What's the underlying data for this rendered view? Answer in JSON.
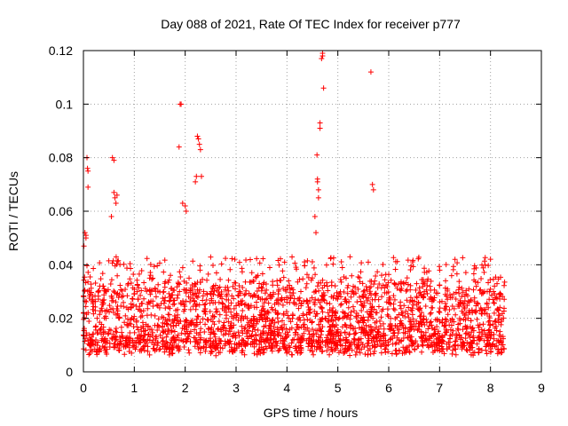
{
  "chart_data": {
    "type": "scatter",
    "title": "Day 088 of 2021, Rate Of TEC Index for receiver p777",
    "xlabel": "GPS time / hours",
    "ylabel": "ROTI / TECUs",
    "xlim": [
      0,
      9
    ],
    "ylim": [
      0,
      0.12
    ],
    "x_ticks": [
      "0",
      "1",
      "2",
      "3",
      "4",
      "5",
      "6",
      "7",
      "8",
      "9"
    ],
    "y_ticks": [
      "0",
      "0.02",
      "0.04",
      "0.06",
      "0.08",
      "0.1",
      "0.12"
    ],
    "grid": true,
    "marker": "+",
    "series": [
      {
        "name": "ROTI",
        "color": "#ff0000",
        "x": [
          0.01,
          0.03,
          0.05,
          0.05,
          0.07,
          0.08,
          0.09,
          0.09,
          0.55,
          0.57,
          0.6,
          0.6,
          0.62,
          0.64,
          0.66,
          1.88,
          1.9,
          1.92,
          1.95,
          2.0,
          2.02,
          2.2,
          2.22,
          2.24,
          2.26,
          2.28,
          2.3,
          2.32,
          4.55,
          4.57,
          4.59,
          4.6,
          4.6,
          4.62,
          4.62,
          4.65,
          4.65,
          4.68,
          4.7,
          4.7,
          4.72,
          5.65,
          5.68,
          5.7
        ],
        "y": [
          0.047,
          0.052,
          0.051,
          0.05,
          0.08,
          0.076,
          0.075,
          0.069,
          0.058,
          0.08,
          0.079,
          0.067,
          0.065,
          0.063,
          0.066,
          0.084,
          0.1,
          0.1,
          0.063,
          0.062,
          0.06,
          0.071,
          0.073,
          0.088,
          0.087,
          0.085,
          0.083,
          0.073,
          0.058,
          0.052,
          0.081,
          0.071,
          0.072,
          0.068,
          0.065,
          0.091,
          0.093,
          0.117,
          0.118,
          0.119,
          0.106,
          0.112,
          0.07,
          0.068
        ]
      }
    ],
    "dense_band": "additional dense scatter of points across x 0–8.3 h with ROTI mostly between 0.005 and 0.045 TECU/min"
  }
}
